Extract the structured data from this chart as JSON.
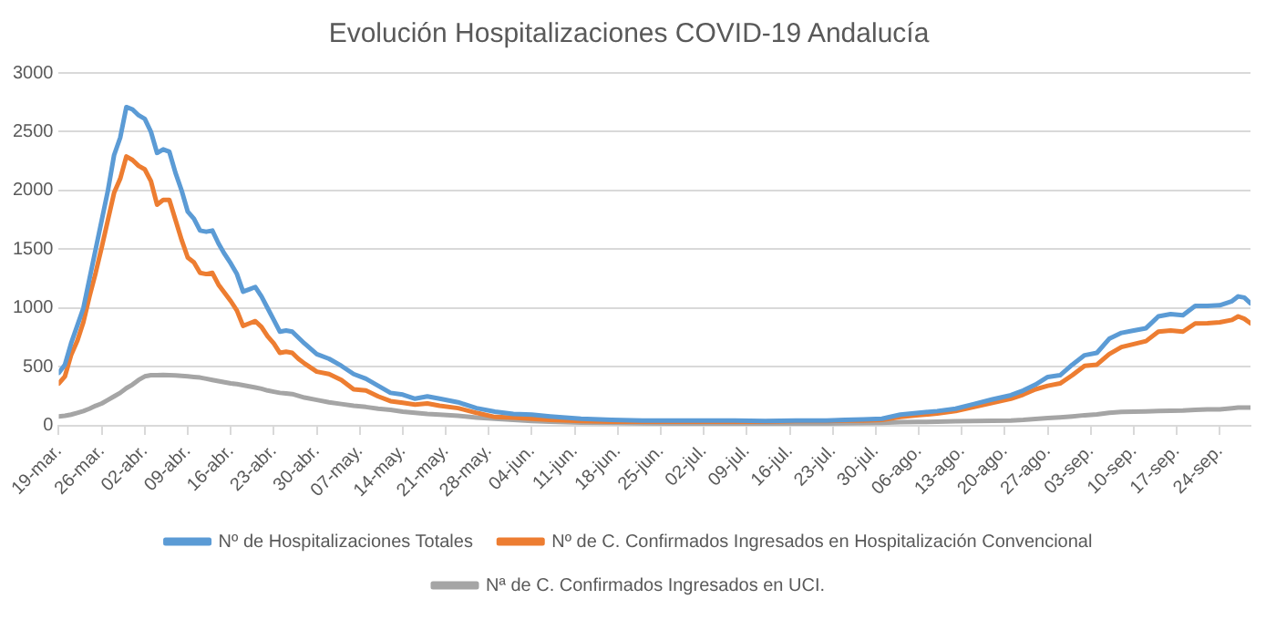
{
  "chart_data": {
    "type": "line",
    "title": "Evolución Hospitalizaciones COVID-19 Andalucía",
    "x": [
      "--03-19",
      "--03-20",
      "--03-21",
      "--03-22",
      "--03-23",
      "--03-24",
      "--03-25",
      "--03-26",
      "--03-27",
      "--03-28",
      "--03-29",
      "--03-30",
      "--03-31",
      "--04-01",
      "--04-02",
      "--04-03",
      "--04-04",
      "--04-05",
      "--04-06",
      "--04-07",
      "--04-08",
      "--04-09",
      "--04-10",
      "--04-11",
      "--04-12",
      "--04-13",
      "--04-14",
      "--04-15",
      "--04-16",
      "--04-17",
      "--04-18",
      "--04-19",
      "--04-20",
      "--04-21",
      "--04-22",
      "--04-23",
      "--04-24",
      "--04-25",
      "--04-26",
      "--04-27",
      "--04-28",
      "--04-30",
      "--05-02",
      "--05-04",
      "--05-06",
      "--05-08",
      "--05-10",
      "--05-12",
      "--05-14",
      "--05-16",
      "--05-18",
      "--05-20",
      "--05-23",
      "--05-26",
      "--05-29",
      "--06-01",
      "--06-04",
      "--06-07",
      "--06-12",
      "--06-17",
      "--06-22",
      "--06-27",
      "--07-02",
      "--07-07",
      "--07-12",
      "--07-17",
      "--07-22",
      "--07-25",
      "--07-28",
      "--07-31",
      "--08-03",
      "--08-06",
      "--08-09",
      "--08-12",
      "--08-15",
      "--08-18",
      "--08-21",
      "--08-23",
      "--08-25",
      "--08-27",
      "--08-29",
      "--08-31",
      "--09-02",
      "--09-04",
      "--09-06",
      "--09-08",
      "--09-10",
      "--09-12",
      "--09-14",
      "--09-16",
      "--09-18",
      "--09-20",
      "--09-22",
      "--09-24",
      "--09-26",
      "--09-27",
      "--09-28",
      "--09-29"
    ],
    "series": [
      {
        "name": "Nº de Hospitalizaciones Totales",
        "color": "#5b9bd5",
        "values": [
          450,
          520,
          700,
          850,
          1000,
          1250,
          1500,
          1750,
          2000,
          2300,
          2450,
          2710,
          2690,
          2640,
          2610,
          2500,
          2320,
          2350,
          2330,
          2150,
          2000,
          1820,
          1760,
          1660,
          1650,
          1660,
          1550,
          1460,
          1380,
          1290,
          1140,
          1160,
          1180,
          1100,
          1000,
          900,
          800,
          810,
          800,
          750,
          700,
          610,
          570,
          510,
          440,
          400,
          340,
          280,
          265,
          230,
          250,
          230,
          200,
          150,
          120,
          100,
          95,
          80,
          60,
          50,
          45,
          45,
          45,
          45,
          40,
          45,
          45,
          50,
          55,
          60,
          95,
          110,
          125,
          145,
          185,
          225,
          260,
          300,
          350,
          415,
          430,
          520,
          600,
          620,
          740,
          790,
          810,
          830,
          930,
          950,
          940,
          1020,
          1020,
          1025,
          1060,
          1100,
          1090,
          1042
        ]
      },
      {
        "name": "Nº de C. Confirmados Ingresados en Hospitalización Convencional",
        "color": "#ed7d31",
        "values": [
          360,
          420,
          600,
          720,
          880,
          1100,
          1300,
          1520,
          1750,
          1980,
          2100,
          2290,
          2260,
          2210,
          2180,
          2080,
          1880,
          1920,
          1920,
          1750,
          1580,
          1430,
          1390,
          1300,
          1290,
          1300,
          1200,
          1130,
          1060,
          980,
          850,
          870,
          890,
          840,
          760,
          700,
          620,
          630,
          620,
          570,
          530,
          460,
          440,
          390,
          310,
          300,
          250,
          210,
          195,
          180,
          190,
          170,
          150,
          110,
          75,
          70,
          60,
          50,
          40,
          35,
          35,
          35,
          35,
          35,
          35,
          40,
          40,
          45,
          45,
          50,
          75,
          90,
          105,
          125,
          160,
          195,
          230,
          265,
          310,
          340,
          360,
          430,
          510,
          520,
          610,
          670,
          695,
          720,
          800,
          810,
          800,
          870,
          872,
          880,
          900,
          930,
          910,
          872
        ]
      },
      {
        "name": "Nª de C. Confirmados Ingresados en UCI.",
        "color": "#a5a5a5",
        "values": [
          80,
          85,
          95,
          110,
          125,
          145,
          170,
          190,
          220,
          250,
          280,
          320,
          350,
          390,
          420,
          430,
          430,
          432,
          430,
          428,
          424,
          420,
          415,
          410,
          400,
          390,
          380,
          370,
          360,
          355,
          345,
          335,
          325,
          315,
          300,
          290,
          280,
          275,
          270,
          255,
          240,
          220,
          200,
          185,
          170,
          160,
          145,
          135,
          120,
          110,
          100,
          95,
          85,
          70,
          60,
          50,
          40,
          35,
          28,
          25,
          22,
          20,
          20,
          18,
          18,
          18,
          20,
          22,
          24,
          26,
          30,
          32,
          35,
          38,
          40,
          42,
          45,
          50,
          58,
          65,
          72,
          80,
          90,
          97,
          110,
          118,
          121,
          122,
          125,
          128,
          130,
          135,
          140,
          140,
          150,
          155,
          155,
          155
        ]
      }
    ],
    "xlim": [
      "--03-19",
      "--09-29"
    ],
    "xticks": [
      {
        "value": "--03-19",
        "label": "19-mar."
      },
      {
        "value": "--03-26",
        "label": "26-mar."
      },
      {
        "value": "--04-02",
        "label": "02-abr."
      },
      {
        "value": "--04-09",
        "label": "09-abr."
      },
      {
        "value": "--04-16",
        "label": "16-abr."
      },
      {
        "value": "--04-23",
        "label": "23-abr."
      },
      {
        "value": "--04-30",
        "label": "30-abr."
      },
      {
        "value": "--05-07",
        "label": "07-may."
      },
      {
        "value": "--05-14",
        "label": "14-may."
      },
      {
        "value": "--05-21",
        "label": "21-may."
      },
      {
        "value": "--05-28",
        "label": "28-may."
      },
      {
        "value": "--06-04",
        "label": "04-jun."
      },
      {
        "value": "--06-11",
        "label": "11-jun."
      },
      {
        "value": "--06-18",
        "label": "18-jun."
      },
      {
        "value": "--06-25",
        "label": "25-jun."
      },
      {
        "value": "--07-02",
        "label": "02-jul."
      },
      {
        "value": "--07-09",
        "label": "09-jul."
      },
      {
        "value": "--07-16",
        "label": "16-jul."
      },
      {
        "value": "--07-23",
        "label": "23-jul."
      },
      {
        "value": "--07-30",
        "label": "30-jul."
      },
      {
        "value": "--08-06",
        "label": "06-ago."
      },
      {
        "value": "--08-13",
        "label": "13-ago."
      },
      {
        "value": "--08-20",
        "label": "20-ago."
      },
      {
        "value": "--08-27",
        "label": "27-ago."
      },
      {
        "value": "--09-03",
        "label": "03-sep."
      },
      {
        "value": "--09-10",
        "label": "10-sep."
      },
      {
        "value": "--09-17",
        "label": "17-sep."
      },
      {
        "value": "--09-24",
        "label": "24-sep."
      }
    ],
    "ylim": [
      0,
      3000
    ],
    "yticks": [
      0,
      500,
      1000,
      1500,
      2000,
      2500,
      3000
    ],
    "grid": "y",
    "legend": "bottom",
    "marker": "none",
    "line_style": "solid"
  }
}
